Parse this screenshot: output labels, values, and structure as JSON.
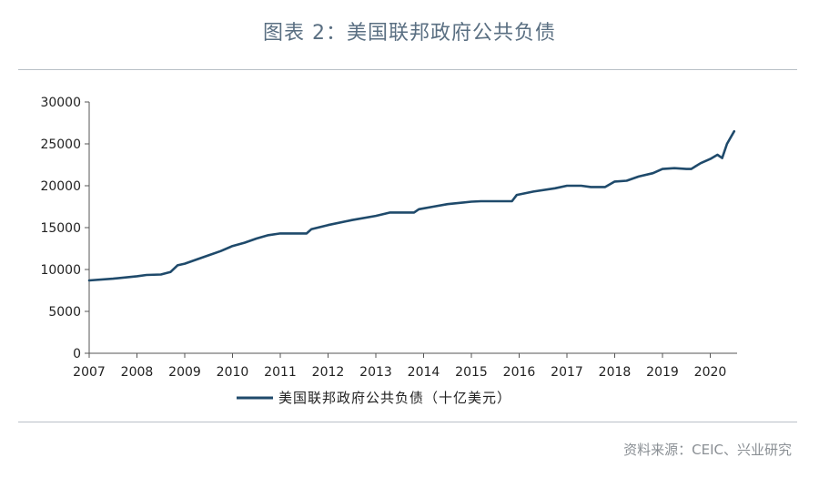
{
  "page": {
    "title": "图表 2：美国联邦政府公共负债",
    "source": "资料来源：CEIC、兴业研究"
  },
  "colors": {
    "line": "#1f4a6b",
    "axis": "#555555",
    "title": "#5a6f82",
    "rule": "#b9c0c7"
  },
  "chart_data": {
    "type": "line",
    "title": "",
    "xlabel": "",
    "ylabel": "",
    "ylim": [
      0,
      30000
    ],
    "xlim": [
      2007,
      2020.6
    ],
    "y_ticks": [
      "0",
      "5000",
      "10000",
      "15000",
      "20000",
      "25000",
      "30000"
    ],
    "x_ticks": [
      "2007",
      "2008",
      "2009",
      "2010",
      "2011",
      "2012",
      "2013",
      "2014",
      "2015",
      "2016",
      "2017",
      "2018",
      "2019",
      "2020"
    ],
    "grid": false,
    "legend_position": "bottom-left",
    "series": [
      {
        "name": "美国联邦政府公共负债（十亿美元）",
        "x": [
          2007.0,
          2007.5,
          2008.0,
          2008.2,
          2008.5,
          2008.7,
          2008.85,
          2009.0,
          2009.25,
          2009.5,
          2009.75,
          2010.0,
          2010.25,
          2010.5,
          2010.75,
          2011.0,
          2011.25,
          2011.55,
          2011.65,
          2012.0,
          2012.5,
          2013.0,
          2013.3,
          2013.5,
          2013.8,
          2013.9,
          2014.2,
          2014.5,
          2015.0,
          2015.2,
          2015.5,
          2015.85,
          2015.95,
          2016.3,
          2016.75,
          2017.0,
          2017.3,
          2017.5,
          2017.8,
          2018.0,
          2018.25,
          2018.5,
          2018.8,
          2019.0,
          2019.25,
          2019.5,
          2019.6,
          2019.8,
          2020.0,
          2020.15,
          2020.25,
          2020.35,
          2020.5
        ],
        "values": [
          8700,
          8900,
          9200,
          9350,
          9400,
          9700,
          10500,
          10700,
          11200,
          11700,
          12200,
          12800,
          13200,
          13700,
          14100,
          14300,
          14300,
          14300,
          14800,
          15300,
          15900,
          16400,
          16800,
          16800,
          16800,
          17200,
          17500,
          17800,
          18100,
          18150,
          18150,
          18150,
          18900,
          19300,
          19700,
          20000,
          20000,
          19850,
          19850,
          20500,
          20600,
          21100,
          21500,
          22000,
          22100,
          22000,
          22000,
          22700,
          23200,
          23700,
          23300,
          25000,
          26500
        ]
      }
    ]
  }
}
